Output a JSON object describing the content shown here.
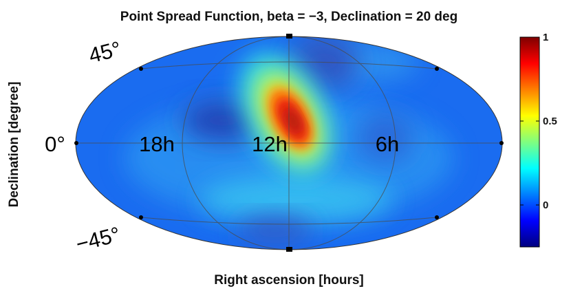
{
  "chart_data": {
    "type": "heatmap",
    "title": "Point Spread Function, beta = −3, Declination = 20 deg",
    "xlabel": "Right ascension [hours]",
    "ylabel": "Declination [degree]",
    "projection": "Mollweide all-sky",
    "ra_tick_labels": [
      "18h",
      "12h",
      "6h"
    ],
    "dec_tick_labels": [
      "45°",
      "0°",
      "−45°"
    ],
    "colorbar": {
      "colormap": "jet",
      "range": [
        -0.25,
        1.0
      ],
      "tick_labels": [
        "1",
        "0.5",
        "0"
      ],
      "tick_values": [
        1.0,
        0.5,
        0.0
      ]
    },
    "features": [
      {
        "name": "main peak",
        "ra_hours": 12.0,
        "dec_deg": 20,
        "value": 1.0
      },
      {
        "name": "negative lobe",
        "ra_hours": 13.7,
        "dec_deg": 8,
        "value": -0.2
      },
      {
        "name": "negative lobe",
        "ra_hours": 12.0,
        "dec_deg": -45,
        "value": -0.1
      },
      {
        "name": "negative lobe",
        "ra_hours": 11.2,
        "dec_deg": 45,
        "value": -0.15
      },
      {
        "name": "side lobe",
        "ra_hours": 12.0,
        "dec_deg": -25,
        "value": 0.25
      }
    ]
  }
}
